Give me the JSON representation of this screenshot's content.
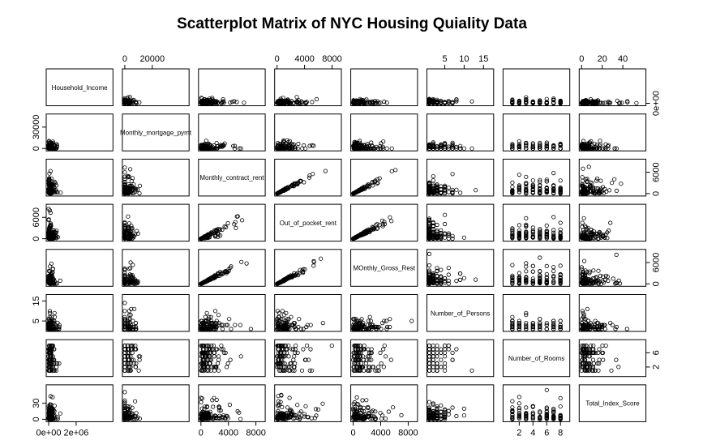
{
  "chart_data": {
    "type": "scatter",
    "subtype": "scatterplot-matrix",
    "title": "Scatterplot Matrix of NYC Housing Quiality Data",
    "variables": [
      {
        "name": "Household_Income",
        "range": [
          0,
          4500000
        ]
      },
      {
        "name": "Monthly_mortgage_pymt",
        "range": [
          0,
          45000
        ]
      },
      {
        "name": "Monthly_contract_rent",
        "range": [
          0,
          9000
        ]
      },
      {
        "name": "Out_of_pocket_rent",
        "range": [
          0,
          9000
        ]
      },
      {
        "name": "MOnthly_Gross_Rest",
        "range": [
          0,
          9000
        ]
      },
      {
        "name": "Number_of_Persons",
        "range": [
          1,
          17
        ]
      },
      {
        "name": "Number_of_Rooms",
        "range": [
          0,
          9
        ]
      },
      {
        "name": "Total_Index_Score",
        "range": [
          0,
          60
        ]
      }
    ],
    "axes": {
      "top": [
        {
          "column": 2,
          "ticks": [
            0,
            20000
          ],
          "labels": [
            "0",
            "20000"
          ]
        },
        {
          "column": 4,
          "ticks": [
            0,
            4000,
            8000
          ],
          "labels": [
            "0",
            "4000",
            "8000"
          ]
        },
        {
          "column": 6,
          "ticks": [
            5,
            10,
            15
          ],
          "labels": [
            "5",
            "10",
            "15"
          ]
        },
        {
          "column": 8,
          "ticks": [
            0,
            20,
            40
          ],
          "labels": [
            "0",
            "20",
            "40"
          ]
        }
      ],
      "bottom": [
        {
          "column": 1,
          "ticks": [
            0,
            2000000
          ],
          "labels": [
            "0e+00",
            "2e+06"
          ]
        },
        {
          "column": 3,
          "ticks": [
            0,
            4000,
            8000
          ],
          "labels": [
            "0",
            "4000",
            "8000"
          ]
        },
        {
          "column": 5,
          "ticks": [
            0,
            4000,
            8000
          ],
          "labels": [
            "0",
            "4000",
            "8000"
          ]
        },
        {
          "column": 7,
          "ticks": [
            2,
            4,
            6,
            8
          ],
          "labels": [
            "2",
            "4",
            "6",
            "8"
          ]
        }
      ],
      "left": [
        {
          "row": 2,
          "ticks": [
            0,
            30000
          ],
          "labels": [
            "0",
            "30000"
          ]
        },
        {
          "row": 4,
          "ticks": [
            0,
            6000
          ],
          "labels": [
            "0",
            "6000"
          ]
        },
        {
          "row": 6,
          "ticks": [
            5,
            15
          ],
          "labels": [
            "5",
            "15"
          ]
        },
        {
          "row": 8,
          "ticks": [
            0,
            30
          ],
          "labels": [
            "0",
            "30"
          ]
        }
      ],
      "right": [
        {
          "row": 1,
          "ticks": [
            0
          ],
          "labels": [
            "0e+00"
          ]
        },
        {
          "row": 3,
          "ticks": [
            0,
            6000
          ],
          "labels": [
            "0",
            "6000"
          ]
        },
        {
          "row": 5,
          "ticks": [
            0,
            6000
          ],
          "labels": [
            "0",
            "6000"
          ]
        },
        {
          "row": 7,
          "ticks": [
            2,
            6
          ],
          "labels": [
            "2",
            "6"
          ]
        }
      ]
    },
    "marker": "open-circle",
    "grid": false,
    "legend": "none"
  }
}
